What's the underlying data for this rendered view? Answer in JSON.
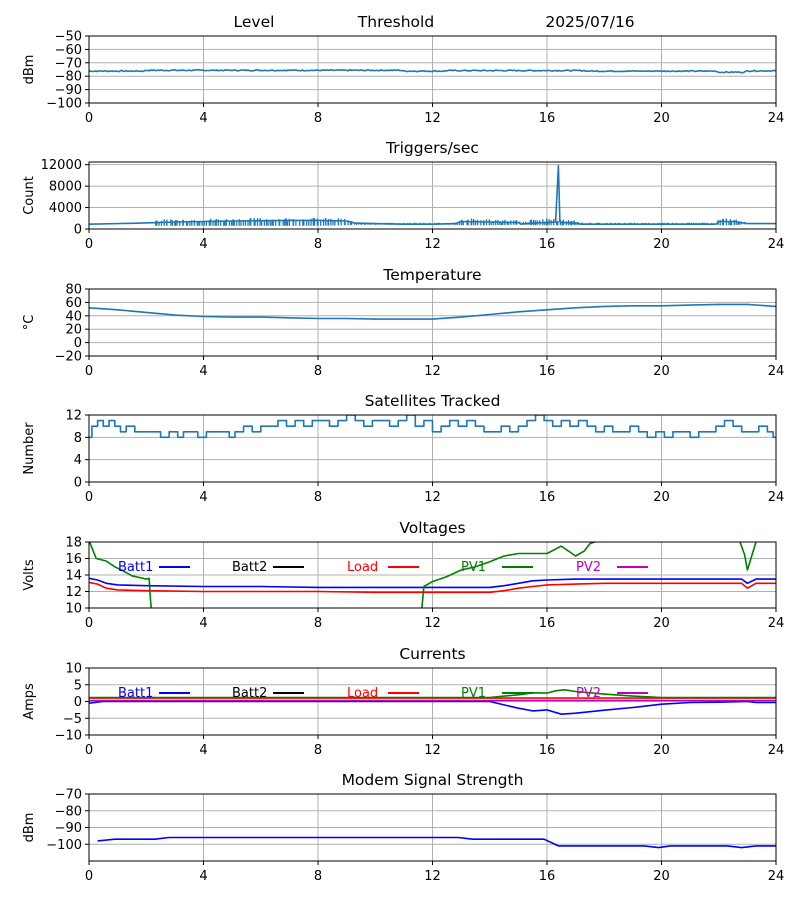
{
  "chart_data": [
    {
      "id": "level",
      "type": "line",
      "title_parts": [
        "Level",
        "Threshold",
        "2025/07/16"
      ],
      "ylabel": "dBm",
      "xlim": [
        0,
        24
      ],
      "ylim": [
        -100,
        -50
      ],
      "xticks": [
        0,
        4,
        8,
        12,
        16,
        20,
        24
      ],
      "yticks": [
        -100,
        -90,
        -80,
        -70,
        -60,
        -50
      ],
      "series": [
        {
          "color": "#1f77b4",
          "noise": 0.4,
          "x": [
            0,
            1.9,
            2.0,
            10.9,
            11.0,
            12.4,
            12.5,
            17.3,
            17.4,
            19.8,
            20.0,
            21.9,
            22.0,
            22.9,
            23.0,
            24.0
          ],
          "y": [
            -76.2,
            -76.2,
            -75.6,
            -75.6,
            -76.2,
            -76.2,
            -75.8,
            -75.8,
            -76.2,
            -76.2,
            -76.2,
            -76.2,
            -77.0,
            -77.0,
            -76.0,
            -76.0
          ]
        }
      ]
    },
    {
      "id": "triggers",
      "type": "line",
      "title": "Triggers/sec",
      "ylabel": "Count",
      "xlim": [
        0,
        24
      ],
      "ylim": [
        0,
        12500
      ],
      "xticks": [
        0,
        4,
        8,
        12,
        16,
        20,
        24
      ],
      "yticks": [
        0,
        4000,
        8000,
        12000
      ],
      "series": [
        {
          "color": "#1f77b4",
          "x": [
            0,
            1.8,
            2.4,
            3.0,
            4.0,
            5.0,
            6.0,
            7.0,
            8.0,
            9.0,
            9.3,
            10.0,
            11.0,
            12.0,
            12.8,
            13.0,
            14.0,
            15.0,
            15.1,
            15.5,
            16.0,
            16.3,
            16.4,
            16.45,
            16.5,
            17.0,
            17.2,
            18.0,
            19.0,
            20.0,
            21.0,
            21.9,
            22.0,
            22.5,
            23.0,
            24.0
          ],
          "y": [
            900,
            1100,
            1200,
            1300,
            1400,
            1500,
            1550,
            1600,
            1600,
            1500,
            1100,
            1000,
            900,
            900,
            1000,
            1400,
            1300,
            1200,
            900,
            1100,
            1200,
            1300,
            11800,
            1300,
            1200,
            1100,
            900,
            900,
            900,
            900,
            900,
            900,
            1400,
            1400,
            1000,
            1000
          ],
          "band": {
            "x": [
              2.3,
              3.0,
              4.0,
              5.0,
              6.0,
              7.0,
              8.0,
              9.0,
              9.3,
              12.8,
              13.0,
              14.0,
              15.0,
              15.1,
              15.5,
              16.0,
              16.5,
              17.0,
              17.3,
              21.9,
              22.0,
              22.5,
              23.0
            ],
            "lo": [
              600,
              600,
              600,
              600,
              600,
              600,
              600,
              700,
              800,
              800,
              700,
              700,
              800,
              900,
              700,
              700,
              700,
              700,
              800,
              900,
              700,
              700,
              900
            ],
            "hi": [
              1800,
              1900,
              2000,
              2000,
              2100,
              2100,
              2100,
              2000,
              1200,
              1200,
              2000,
              1900,
              1700,
              1200,
              1900,
              2000,
              1900,
              1800,
              1200,
              1200,
              2000,
              2000,
              1200
            ]
          }
        }
      ]
    },
    {
      "id": "temperature",
      "type": "line",
      "title": "Temperature",
      "ylabel": "°C",
      "xlim": [
        0,
        24
      ],
      "ylim": [
        -20,
        80
      ],
      "xticks": [
        0,
        4,
        8,
        12,
        16,
        20,
        24
      ],
      "yticks": [
        -20,
        0,
        20,
        40,
        60,
        80
      ],
      "series": [
        {
          "color": "#1f77b4",
          "x": [
            0,
            1,
            2,
            3,
            4,
            5,
            6,
            7,
            8,
            9,
            10,
            11,
            12,
            13,
            14,
            15,
            16,
            17,
            18,
            19,
            20,
            21,
            22,
            23,
            24
          ],
          "y": [
            52,
            49,
            45,
            41,
            39,
            38,
            38,
            37,
            36,
            36,
            35,
            35,
            35,
            38,
            42,
            46,
            49,
            52,
            54,
            55,
            55,
            56,
            57,
            57,
            54
          ]
        }
      ]
    },
    {
      "id": "satellites",
      "type": "line",
      "title": "Satellites Tracked",
      "ylabel": "Number",
      "xlim": [
        0,
        24
      ],
      "ylim": [
        0,
        12
      ],
      "xticks": [
        0,
        4,
        8,
        12,
        16,
        20,
        24
      ],
      "yticks": [
        0,
        4,
        8,
        12
      ],
      "series": [
        {
          "color": "#1f77b4",
          "step": true,
          "x": [
            0,
            0.1,
            0.3,
            0.5,
            0.7,
            0.9,
            1.1,
            1.3,
            1.6,
            1.9,
            2.2,
            2.5,
            2.8,
            3.1,
            3.3,
            3.5,
            3.8,
            4.1,
            4.4,
            4.7,
            4.9,
            5.1,
            5.4,
            5.7,
            6.0,
            6.3,
            6.6,
            6.9,
            7.2,
            7.5,
            7.8,
            8.1,
            8.4,
            8.7,
            9.0,
            9.3,
            9.6,
            9.9,
            10.2,
            10.5,
            10.8,
            11.1,
            11.4,
            11.7,
            12.0,
            12.3,
            12.6,
            12.9,
            13.2,
            13.5,
            13.8,
            14.1,
            14.4,
            14.7,
            15.0,
            15.3,
            15.6,
            15.9,
            16.2,
            16.5,
            16.8,
            17.1,
            17.4,
            17.7,
            18.0,
            18.3,
            18.6,
            18.9,
            19.2,
            19.5,
            19.8,
            20.1,
            20.4,
            20.7,
            21.0,
            21.3,
            21.6,
            21.9,
            22.2,
            22.5,
            22.8,
            23.1,
            23.4,
            23.7,
            23.9
          ],
          "y": [
            8,
            10,
            11,
            10,
            11,
            10,
            9,
            10,
            9,
            9,
            9,
            8,
            9,
            8,
            9,
            9,
            8,
            9,
            9,
            9,
            8,
            9,
            10,
            9,
            10,
            10,
            11,
            10,
            11,
            10,
            11,
            11,
            10,
            11,
            12,
            11,
            10,
            11,
            11,
            10,
            11,
            12,
            10,
            11,
            9,
            10,
            11,
            10,
            11,
            10,
            9,
            9,
            10,
            9,
            10,
            11,
            12,
            11,
            10,
            11,
            10,
            11,
            10,
            9,
            10,
            9,
            9,
            10,
            9,
            8,
            9,
            8,
            9,
            9,
            8,
            9,
            9,
            10,
            11,
            10,
            9,
            9,
            10,
            9,
            8
          ]
        }
      ]
    },
    {
      "id": "voltages",
      "type": "line",
      "title": "Voltages",
      "ylabel": "Volts",
      "xlim": [
        0,
        24
      ],
      "ylim": [
        10,
        18
      ],
      "xticks": [
        0,
        4,
        8,
        12,
        16,
        20,
        24
      ],
      "yticks": [
        10,
        12,
        14,
        16,
        18
      ],
      "legend": [
        {
          "name": "Batt1",
          "color": "#0000ff"
        },
        {
          "name": "Batt2",
          "color": "#000000"
        },
        {
          "name": "Load",
          "color": "#ff0000"
        },
        {
          "name": "PV1",
          "color": "#008000"
        },
        {
          "name": "PV2",
          "color": "#bf00bf"
        }
      ],
      "series": [
        {
          "name": "Batt1",
          "color": "#0000ff",
          "x": [
            0,
            0.3,
            0.6,
            1,
            2,
            4,
            6,
            8,
            10,
            12,
            14,
            14.5,
            15,
            15.5,
            16,
            17,
            18,
            20,
            22,
            22.8,
            23,
            23.3,
            24
          ],
          "y": [
            13.6,
            13.4,
            13.0,
            12.8,
            12.7,
            12.6,
            12.6,
            12.5,
            12.5,
            12.5,
            12.5,
            12.7,
            13.0,
            13.3,
            13.4,
            13.5,
            13.5,
            13.5,
            13.5,
            13.5,
            13.0,
            13.5,
            13.5
          ]
        },
        {
          "name": "Load",
          "color": "#ff0000",
          "x": [
            0,
            0.3,
            0.6,
            1,
            2,
            4,
            6,
            8,
            10,
            12,
            14,
            14.5,
            15,
            15.5,
            16,
            17,
            18,
            20,
            22,
            22.8,
            23,
            23.3,
            24
          ],
          "y": [
            13.1,
            12.9,
            12.4,
            12.2,
            12.1,
            12.0,
            12.0,
            12.0,
            11.9,
            11.9,
            11.9,
            12.1,
            12.4,
            12.6,
            12.8,
            12.9,
            13.0,
            13.0,
            13.0,
            13.0,
            12.4,
            13.0,
            13.0
          ]
        },
        {
          "name": "PV1",
          "color": "#008000",
          "segments": [
            {
              "x": [
                0,
                0.25,
                0.6,
                0.9,
                1.2,
                1.5,
                2.0,
                2.1,
                2.15,
                2.2
              ],
              "y": [
                18.2,
                16.0,
                15.7,
                15.0,
                14.5,
                13.9,
                13.5,
                13.6,
                11.0,
                9.0
              ]
            },
            {
              "x": [
                11.6,
                11.7,
                12.0,
                12.5,
                13.0,
                13.5,
                14.0,
                14.5,
                15.0,
                15.5,
                16.0,
                16.5,
                17.0,
                17.3,
                17.5,
                18.0
              ],
              "y": [
                9.0,
                12.6,
                13.2,
                13.8,
                14.6,
                15.0,
                15.6,
                16.3,
                16.6,
                16.6,
                16.6,
                17.5,
                16.3,
                16.9,
                17.8,
                18.4
              ]
            },
            {
              "x": [
                22.7,
                22.9,
                23.0,
                23.3,
                23.5
              ],
              "y": [
                18.4,
                16.5,
                14.6,
                18.0,
                18.4
              ]
            }
          ]
        }
      ]
    },
    {
      "id": "currents",
      "type": "line",
      "title": "Currents",
      "ylabel": "Amps",
      "xlim": [
        0,
        24
      ],
      "ylim": [
        -10,
        10
      ],
      "xticks": [
        0,
        4,
        8,
        12,
        16,
        20,
        24
      ],
      "yticks": [
        -10,
        -5,
        0,
        5,
        10
      ],
      "legend": [
        {
          "name": "Batt1",
          "color": "#0000ff"
        },
        {
          "name": "Batt2",
          "color": "#000000"
        },
        {
          "name": "Load",
          "color": "#ff0000"
        },
        {
          "name": "PV1",
          "color": "#008000"
        },
        {
          "name": "PV2",
          "color": "#bf00bf"
        }
      ],
      "series": [
        {
          "name": "Batt1",
          "color": "#0000ff",
          "x": [
            0,
            0.5,
            2,
            4,
            6,
            8,
            10,
            12,
            14,
            14.5,
            15,
            15.5,
            16,
            16.5,
            17,
            18,
            19,
            20,
            21,
            22,
            23,
            23.3,
            24
          ],
          "y": [
            -0.5,
            0,
            0,
            0,
            0,
            0,
            0,
            0,
            0,
            -1.0,
            -2.0,
            -2.8,
            -2.5,
            -3.8,
            -3.5,
            -2.6,
            -1.8,
            -0.8,
            -0.3,
            -0.2,
            0,
            -0.3,
            -0.3
          ]
        },
        {
          "name": "Load",
          "color": "#ff0000",
          "x": [
            0,
            4,
            8,
            12,
            16,
            20,
            24
          ],
          "y": [
            1.0,
            1.0,
            1.0,
            1.0,
            1.0,
            1.0,
            1.0
          ]
        },
        {
          "name": "PV1",
          "color": "#008000",
          "x": [
            0,
            2,
            4,
            8,
            12,
            14,
            14.5,
            15,
            15.5,
            16,
            16.3,
            16.6,
            17,
            18,
            19,
            20,
            21,
            22,
            24
          ],
          "y": [
            1.2,
            1.2,
            1.2,
            1.2,
            1.2,
            1.2,
            1.6,
            2.0,
            2.6,
            2.5,
            3.2,
            3.5,
            3.0,
            2.2,
            1.6,
            1.2,
            1.2,
            1.2,
            1.2
          ]
        },
        {
          "name": "PV2",
          "color": "#bf00bf",
          "x": [
            0,
            4,
            8,
            12,
            16,
            20,
            24
          ],
          "y": [
            0.3,
            0.3,
            0.3,
            0.3,
            0.3,
            0.3,
            0.3
          ]
        }
      ]
    },
    {
      "id": "modem",
      "type": "line",
      "title": "Modem Signal Strength",
      "ylabel": "dBm",
      "xlim": [
        0,
        24
      ],
      "ylim": [
        -110,
        -70
      ],
      "xticks": [
        0,
        4,
        8,
        12,
        16,
        20,
        24
      ],
      "yticks": [
        -100,
        -90,
        -80,
        -70
      ],
      "series": [
        {
          "color": "#0000ff",
          "x": [
            0.3,
            0.9,
            2.3,
            2.8,
            6,
            8,
            10,
            12.9,
            13.4,
            14.0,
            15.9,
            16.4,
            17,
            18,
            19.4,
            19.9,
            20.3,
            21,
            22.3,
            22.8,
            23.3,
            24
          ],
          "y": [
            -98,
            -97,
            -97,
            -96,
            -96,
            -96,
            -96,
            -96,
            -97,
            -97,
            -97,
            -101,
            -101,
            -101,
            -101,
            -102,
            -101,
            -101,
            -101,
            -102,
            -101,
            -101
          ]
        }
      ]
    }
  ]
}
